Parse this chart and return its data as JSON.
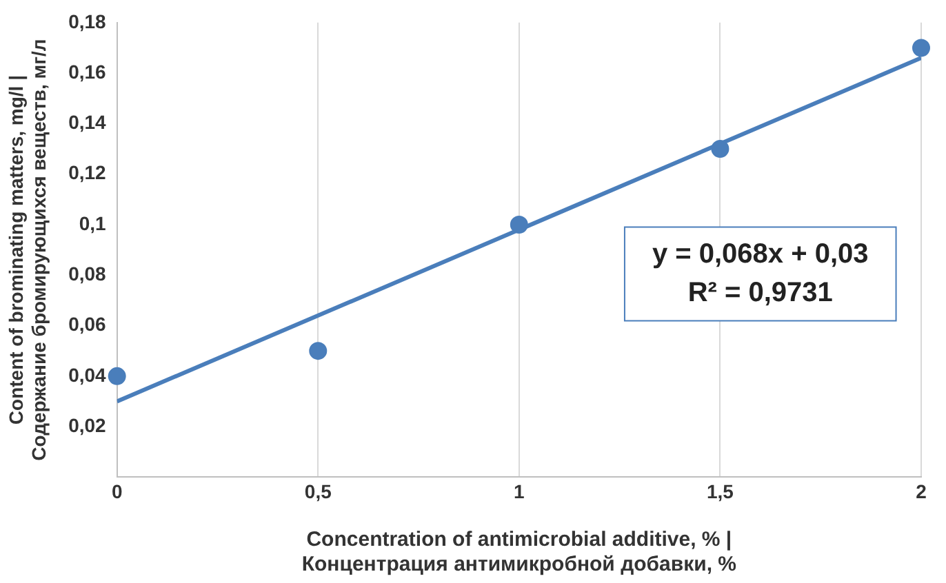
{
  "chart_data": {
    "type": "scatter",
    "xlabel": "Concentration of antimicrobial additive, % |\nКонцентрация антимикробной добавки, %",
    "ylabel": "Content of brominating matters, mg/l |\nСодержание бромирующихся веществ, мг/л",
    "x": [
      0,
      0.5,
      1,
      1.5,
      2
    ],
    "series": [
      {
        "color": "#4a7ebb",
        "values": [
          0.04,
          0.05,
          0.1,
          0.13,
          0.17
        ],
        "marker": "circle"
      },
      {
        "type": "line",
        "color": "#4a7ebb",
        "x": [
          0,
          2
        ],
        "values": [
          0.03,
          0.166
        ],
        "line_style": "solid",
        "marker": "none"
      }
    ],
    "xlim": [
      0,
      2
    ],
    "xticks": [
      0,
      {
        "value": 0.5,
        "label": "0,5"
      },
      1,
      {
        "value": 1.5,
        "label": "1,5"
      },
      2
    ],
    "ylim": [
      0,
      0.18
    ],
    "yticks": [
      {
        "value": 0,
        "label": null
      },
      {
        "value": 0.02,
        "label": "0,02"
      },
      {
        "value": 0.04,
        "label": "0,04"
      },
      {
        "value": 0.06,
        "label": "0,06"
      },
      {
        "value": 0.08,
        "label": "0,08"
      },
      {
        "value": 0.1,
        "label": "0,1"
      },
      {
        "value": 0.12,
        "label": "0,12"
      },
      {
        "value": 0.14,
        "label": "0,14"
      },
      {
        "value": 0.16,
        "label": "0,16"
      },
      {
        "value": 0.18,
        "label": "0,18"
      }
    ],
    "grid": "x",
    "legend": false,
    "annotations": [
      "y = 0,068x + 0,03\nR² = 0,9731"
    ]
  }
}
